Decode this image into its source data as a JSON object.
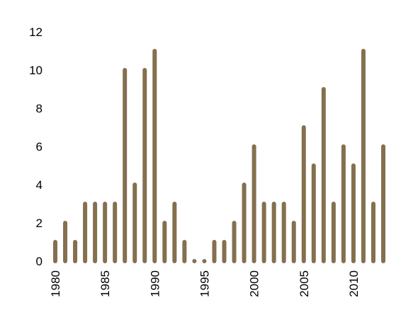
{
  "chart_data": {
    "type": "bar",
    "title": "",
    "xlabel": "",
    "ylabel": "",
    "x": [
      1980,
      1981,
      1982,
      1983,
      1984,
      1985,
      1986,
      1987,
      1988,
      1989,
      1990,
      1991,
      1992,
      1993,
      1994,
      1995,
      1996,
      1997,
      1998,
      1999,
      2000,
      2001,
      2002,
      2003,
      2004,
      2005,
      2006,
      2007,
      2008,
      2009,
      2010,
      2011,
      2012,
      2013
    ],
    "values": [
      1,
      2,
      1,
      3,
      3,
      3,
      3,
      10,
      4,
      10,
      11,
      2,
      3,
      1,
      0,
      0,
      1,
      1,
      2,
      4,
      6,
      3,
      3,
      3,
      2,
      7,
      5,
      9,
      3,
      6,
      5,
      11,
      3,
      6
    ],
    "ylim": [
      0,
      12
    ],
    "yticks": [
      "0",
      "2",
      "4",
      "6",
      "8",
      "10",
      "12"
    ],
    "xticks": [
      "1980",
      "1985",
      "1990",
      "1995",
      "2000",
      "2005",
      "2010"
    ],
    "bar_color": "#84704f",
    "grid": false,
    "legend": "none"
  }
}
